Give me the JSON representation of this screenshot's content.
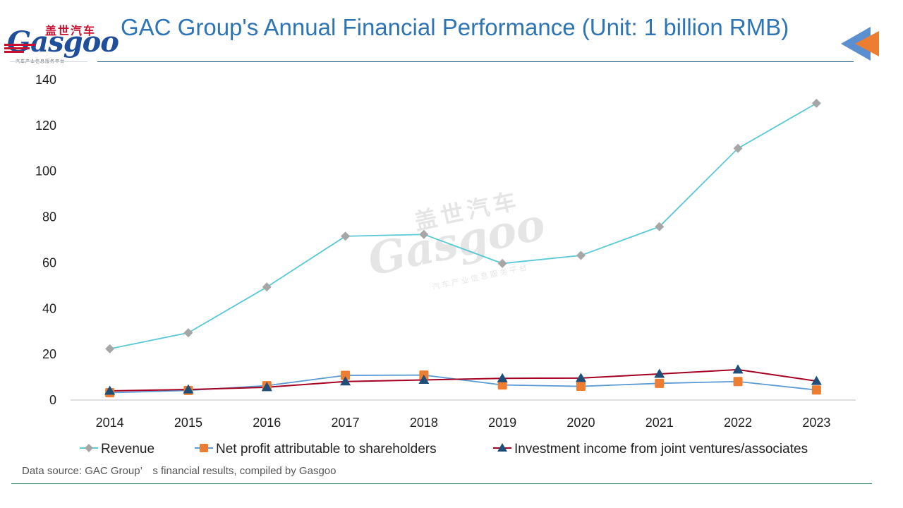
{
  "header": {
    "title": "GAC Group's Annual Financial Performance (Unit: 1 billion RMB)"
  },
  "logo": {
    "cn_text": "盖世汽车",
    "en_text": "Gasgoo",
    "subtitle": "汽车产业信息服务平台"
  },
  "footer": {
    "source": "Data source: GAC Group’　s financial results, compiled by Gasgoo"
  },
  "colors": {
    "revenue": "#5bc8d6",
    "revenue_marker": "#a6a6a6",
    "net_profit": "#5b9bd5",
    "net_profit_marker": "#ed7d31",
    "investment": "#a50021",
    "investment_marker": "#1f4e79",
    "title": "#2e75b6"
  },
  "chart_data": {
    "type": "line",
    "title": "",
    "xlabel": "",
    "ylabel": "",
    "categories": [
      "2014",
      "2015",
      "2016",
      "2017",
      "2018",
      "2019",
      "2020",
      "2021",
      "2022",
      "2023"
    ],
    "ylim": [
      0,
      140
    ],
    "yticks": [
      0,
      20,
      40,
      60,
      80,
      100,
      120,
      140
    ],
    "grid": false,
    "legend": "bottom",
    "series": [
      {
        "name": "Revenue",
        "marker": "diamond",
        "values": [
          22.4,
          29.4,
          49.4,
          71.6,
          72.4,
          59.7,
          63.2,
          75.8,
          110.0,
          129.7
        ]
      },
      {
        "name": "Net profit attributable to shareholders",
        "marker": "square",
        "values": [
          3.2,
          4.2,
          6.3,
          10.8,
          10.9,
          6.6,
          6.0,
          7.3,
          8.1,
          4.4
        ]
      },
      {
        "name": "Investment income from joint ventures/associates",
        "marker": "triangle",
        "values": [
          4.0,
          4.6,
          5.6,
          8.1,
          8.8,
          9.5,
          9.6,
          11.4,
          13.3,
          8.3
        ]
      }
    ]
  }
}
